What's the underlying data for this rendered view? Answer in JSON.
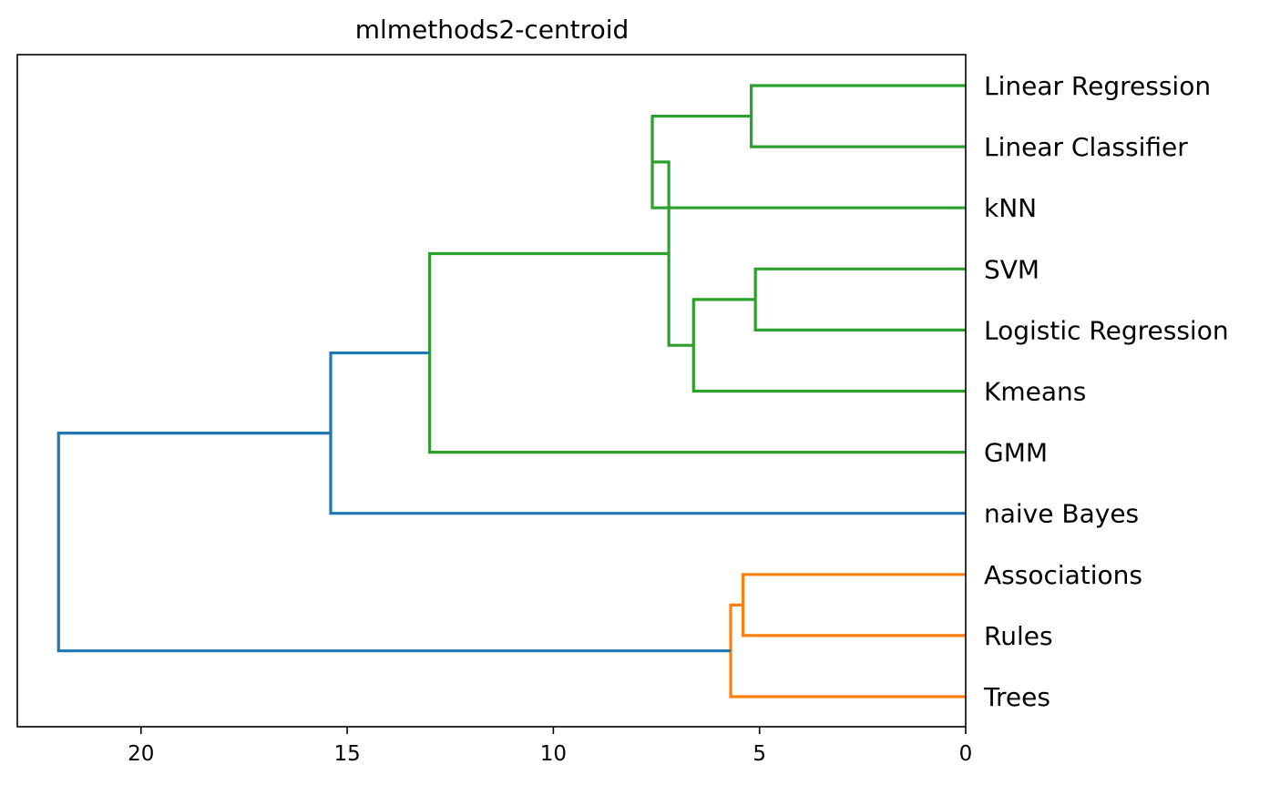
{
  "chart_data": {
    "type": "dendrogram",
    "title": "mlmethods2-centroid",
    "orientation": "left",
    "xlim": [
      23,
      0
    ],
    "x_ticks": [
      20,
      15,
      10,
      5,
      0
    ],
    "leaves": [
      "Linear Regression",
      "Linear Classifier",
      "kNN",
      "SVM",
      "Logistic Regression",
      "Kmeans",
      "GMM",
      "naive Bayes",
      "Associations",
      "Rules",
      "Trees"
    ],
    "colors": {
      "green": "#2ca02c",
      "orange": "#ff7f0e",
      "blue": "#1f77b4"
    },
    "links": [
      {
        "a": "Linear Regression",
        "b": "Linear Classifier",
        "height": 5.2,
        "color": "green"
      },
      {
        "a": "SVM",
        "b": "Logistic Regression",
        "height": 5.1,
        "color": "green"
      },
      {
        "a": "Associations",
        "b": "Rules",
        "height": 5.4,
        "color": "orange"
      },
      {
        "a": "C3",
        "b": "Trees",
        "height": 5.7,
        "color": "orange"
      },
      {
        "a": "C2",
        "b": "Kmeans",
        "height": 6.6,
        "color": "green"
      },
      {
        "a": "C1",
        "b": "kNN",
        "height": 7.6,
        "color": "green"
      },
      {
        "a": "C6",
        "b": "C5",
        "height": 7.2,
        "color": "green"
      },
      {
        "a": "C7",
        "b": "GMM",
        "height": 13.0,
        "color": "green"
      },
      {
        "a": "C8",
        "b": "naive Bayes",
        "height": 15.4,
        "color": "blue"
      },
      {
        "a": "C9",
        "b": "C4",
        "height": 22.0,
        "color": "blue"
      }
    ]
  }
}
